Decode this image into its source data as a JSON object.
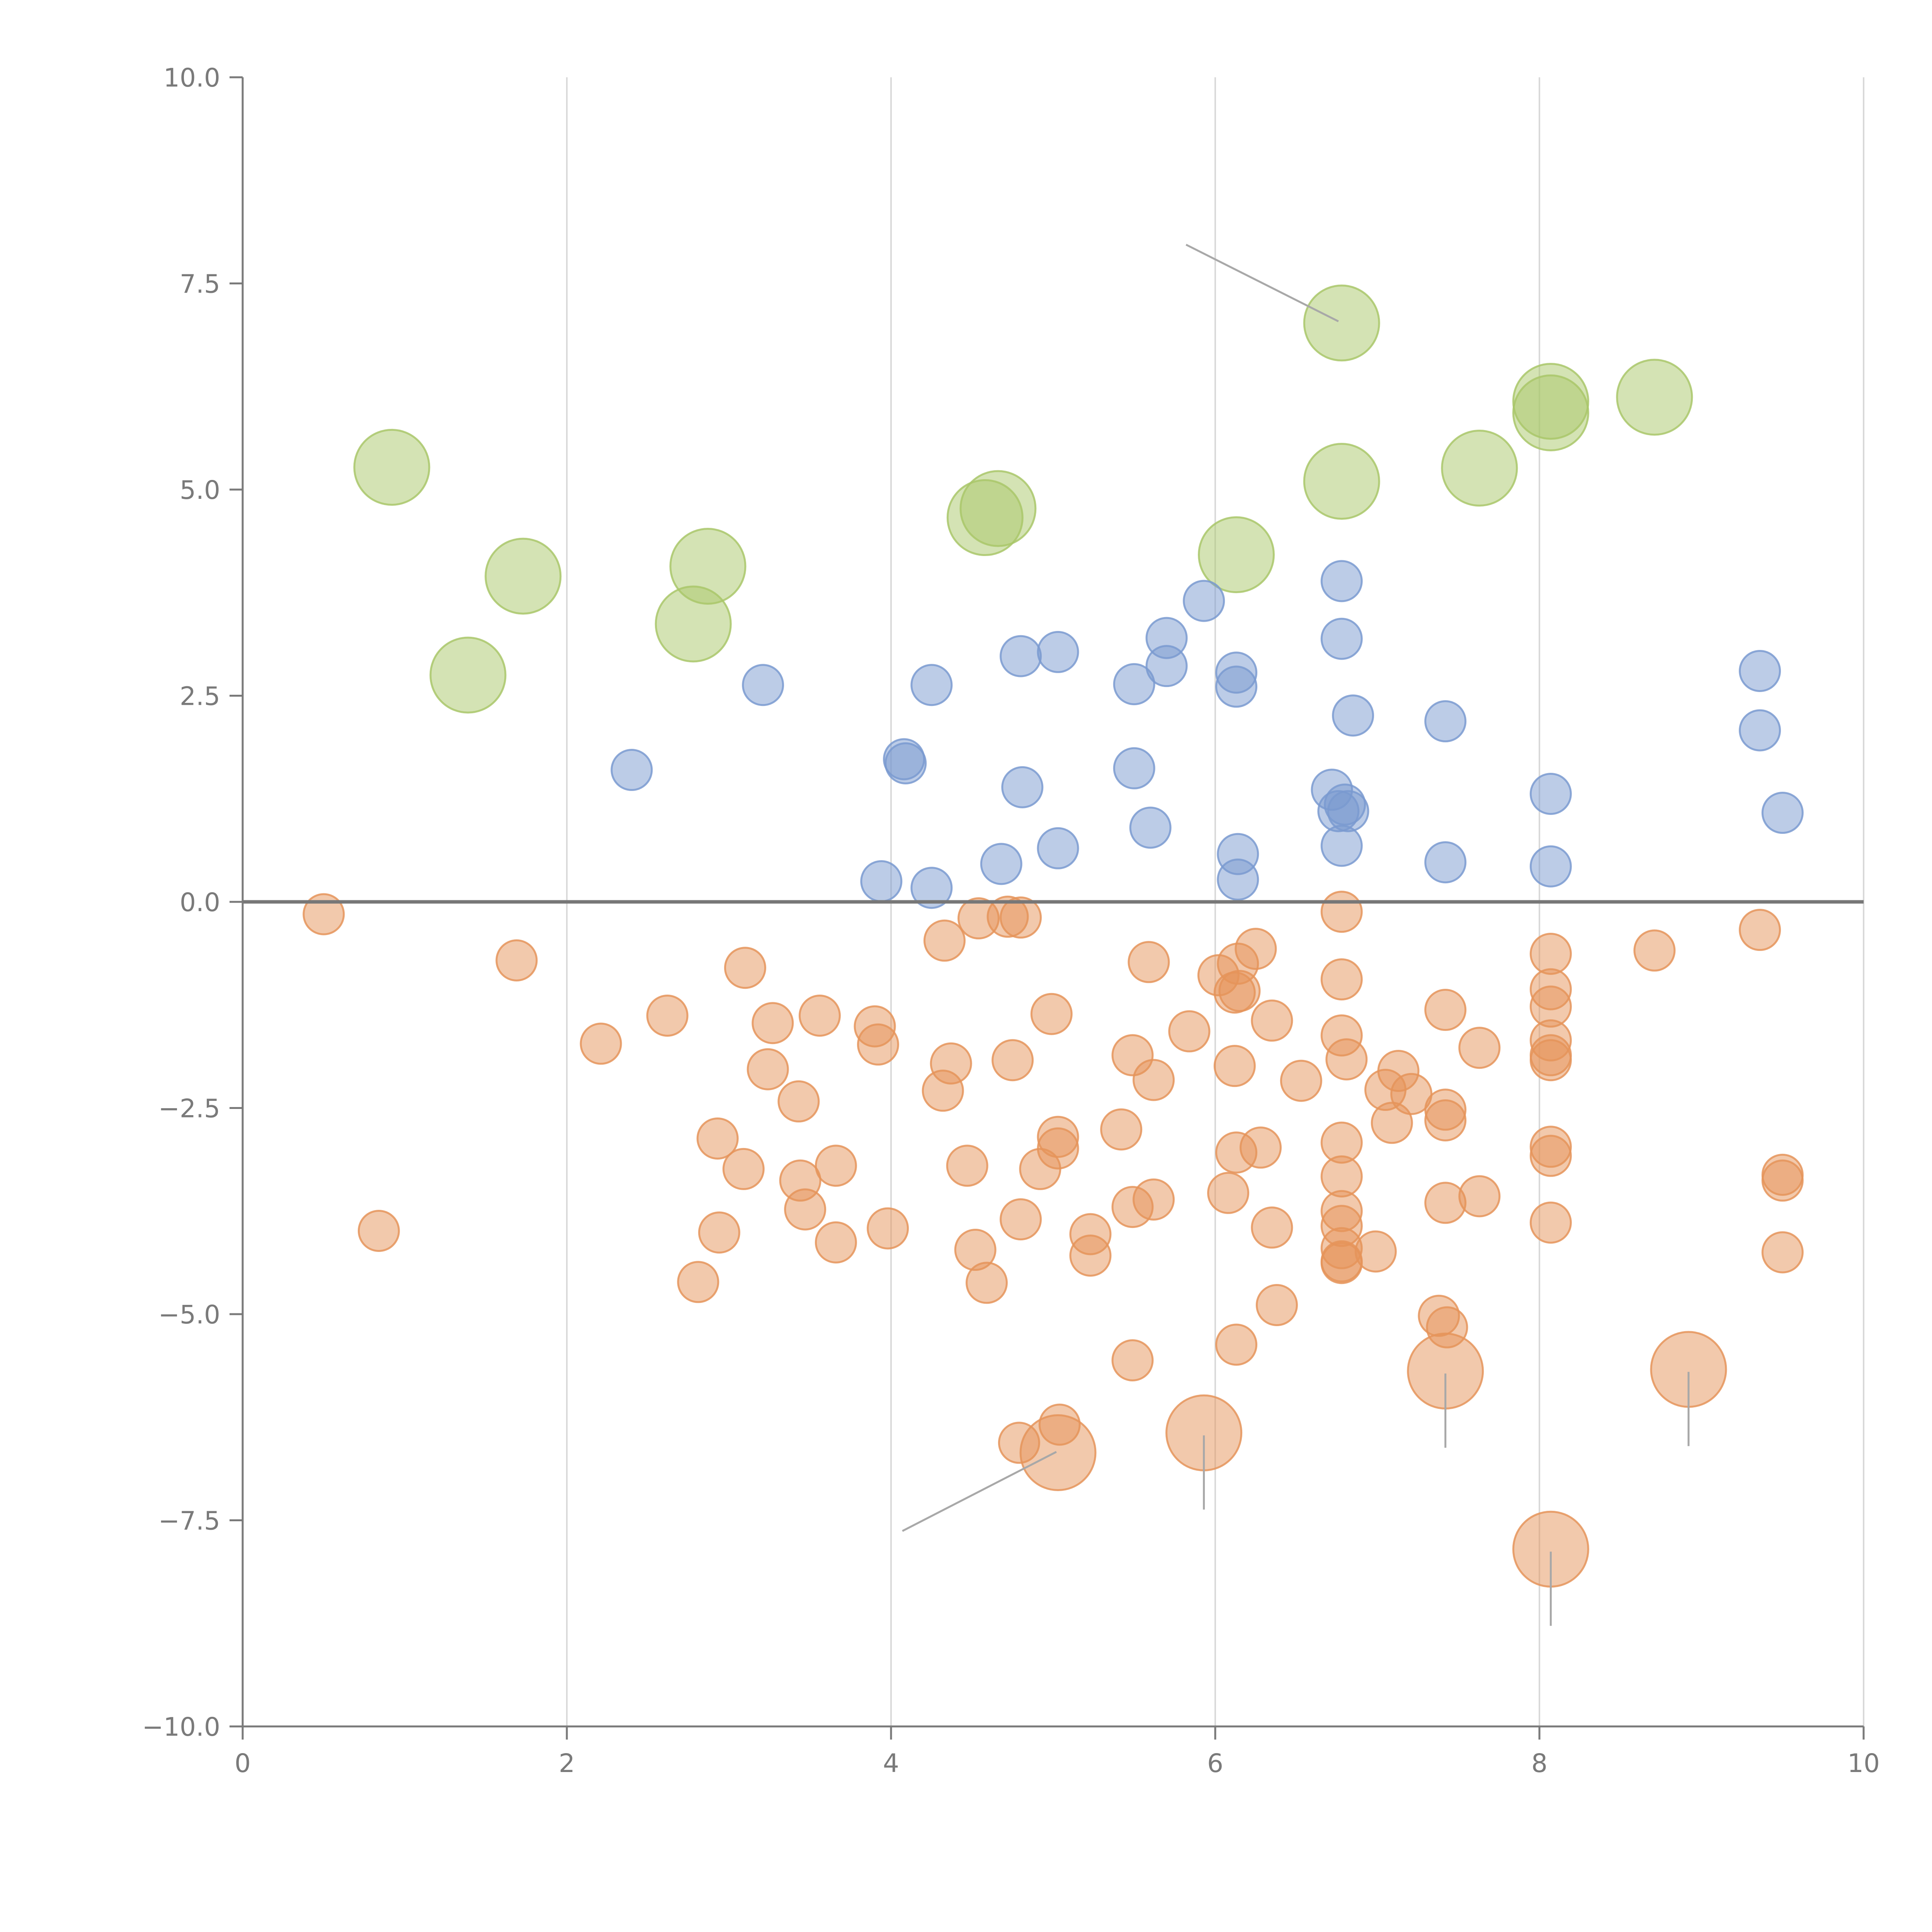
{
  "chart_data": {
    "type": "scatter",
    "title": "",
    "xlabel": "",
    "ylabel": "",
    "xlim": [
      0,
      10
    ],
    "ylim": [
      -10,
      10
    ],
    "grid": "vertical",
    "x_ticks": [
      "0",
      "2",
      "4",
      "6",
      "8",
      "10"
    ],
    "y_ticks": [
      "10.0",
      "7.5",
      "5.0",
      "2.5",
      "0.0",
      "−2.5",
      "−5.0",
      "−7.5",
      "−10.0"
    ],
    "colors": {
      "green": "#a9c76a",
      "blue": "#7a9ad0",
      "orange": "#e5945a",
      "axis": "#7a7a7a",
      "grid": "#d9d9d9",
      "zero_line": "#777777"
    },
    "series": [
      {
        "name": "green",
        "size": "large",
        "points": [
          [
            0.92,
            5.27
          ],
          [
            1.39,
            2.75
          ],
          [
            1.73,
            3.95
          ],
          [
            2.78,
            3.37
          ],
          [
            2.87,
            4.07
          ],
          [
            4.66,
            4.77
          ],
          [
            4.58,
            4.66
          ],
          [
            6.13,
            4.21
          ],
          [
            6.78,
            7.02
          ],
          [
            6.78,
            5.1
          ],
          [
            7.63,
            5.26
          ],
          [
            8.07,
            6.07
          ],
          [
            8.07,
            5.93
          ],
          [
            8.71,
            6.12
          ]
        ]
      },
      {
        "name": "blue",
        "size": "small",
        "points": [
          [
            2.4,
            1.6
          ],
          [
            3.21,
            2.63
          ],
          [
            3.94,
            0.25
          ],
          [
            4.08,
            1.73
          ],
          [
            4.09,
            1.68
          ],
          [
            4.25,
            2.63
          ],
          [
            4.25,
            0.17
          ],
          [
            4.68,
            0.46
          ],
          [
            4.8,
            2.98
          ],
          [
            4.81,
            1.39
          ],
          [
            5.03,
            3.03
          ],
          [
            5.03,
            0.65
          ],
          [
            5.5,
            2.64
          ],
          [
            5.5,
            1.62
          ],
          [
            5.6,
            0.9
          ],
          [
            5.7,
            3.2
          ],
          [
            5.7,
            2.86
          ],
          [
            5.93,
            3.65
          ],
          [
            6.13,
            2.78
          ],
          [
            6.13,
            2.61
          ],
          [
            6.14,
            0.58
          ],
          [
            6.14,
            0.27
          ],
          [
            6.72,
            1.36
          ],
          [
            6.76,
            1.1
          ],
          [
            6.78,
            3.89
          ],
          [
            6.78,
            3.19
          ],
          [
            6.78,
            0.68
          ],
          [
            6.8,
            1.18
          ],
          [
            6.82,
            1.1
          ],
          [
            6.85,
            2.26
          ],
          [
            7.42,
            2.19
          ],
          [
            7.42,
            0.48
          ],
          [
            8.07,
            1.31
          ],
          [
            8.07,
            0.43
          ],
          [
            9.36,
            2.8
          ],
          [
            9.36,
            2.08
          ],
          [
            9.5,
            1.08
          ]
        ]
      },
      {
        "name": "orange",
        "size": "small",
        "points": [
          [
            0.5,
            -0.15
          ],
          [
            0.84,
            -3.99
          ],
          [
            1.69,
            -0.71
          ],
          [
            2.21,
            -1.72
          ],
          [
            2.62,
            -1.38
          ],
          [
            2.81,
            -4.61
          ],
          [
            2.93,
            -2.87
          ],
          [
            2.94,
            -4.01
          ],
          [
            3.09,
            -3.24
          ],
          [
            3.1,
            -0.8
          ],
          [
            3.24,
            -2.03
          ],
          [
            3.27,
            -1.47
          ],
          [
            3.43,
            -2.42
          ],
          [
            3.44,
            -3.38
          ],
          [
            3.47,
            -3.73
          ],
          [
            3.56,
            -1.38
          ],
          [
            3.66,
            -4.13
          ],
          [
            3.66,
            -3.2
          ],
          [
            3.9,
            -1.51
          ],
          [
            3.92,
            -1.73
          ],
          [
            3.98,
            -3.96
          ],
          [
            4.32,
            -2.29
          ],
          [
            4.33,
            -0.47
          ],
          [
            4.37,
            -1.96
          ],
          [
            4.47,
            -3.2
          ],
          [
            4.52,
            -4.22
          ],
          [
            4.54,
            -0.2
          ],
          [
            4.59,
            -4.62
          ],
          [
            4.72,
            -0.18
          ],
          [
            4.75,
            -1.92
          ],
          [
            4.79,
            -6.56
          ],
          [
            4.8,
            -0.19
          ],
          [
            4.8,
            -3.85
          ],
          [
            4.92,
            -3.24
          ],
          [
            4.99,
            -1.36
          ],
          [
            5.03,
            -2.85
          ],
          [
            5.03,
            -2.99
          ],
          [
            5.04,
            -6.34
          ],
          [
            5.23,
            -4.03
          ],
          [
            5.23,
            -4.29
          ],
          [
            5.42,
            -2.76
          ],
          [
            5.49,
            -1.86
          ],
          [
            5.49,
            -3.7
          ],
          [
            5.49,
            -5.56
          ],
          [
            5.59,
            -0.73
          ],
          [
            5.62,
            -2.16
          ],
          [
            5.62,
            -3.61
          ],
          [
            5.84,
            -1.57
          ],
          [
            6.02,
            -0.89
          ],
          [
            6.08,
            -3.53
          ],
          [
            6.12,
            -1.1
          ],
          [
            6.12,
            -1.99
          ],
          [
            6.13,
            -3.04
          ],
          [
            6.13,
            -5.37
          ],
          [
            6.14,
            -0.75
          ],
          [
            6.15,
            -1.08
          ],
          [
            6.25,
            -0.57
          ],
          [
            6.28,
            -2.98
          ],
          [
            6.35,
            -1.44
          ],
          [
            6.35,
            -3.95
          ],
          [
            6.38,
            -4.89
          ],
          [
            6.53,
            -2.17
          ],
          [
            6.78,
            -0.12
          ],
          [
            6.78,
            -0.94
          ],
          [
            6.78,
            -1.62
          ],
          [
            6.78,
            -2.92
          ],
          [
            6.78,
            -3.33
          ],
          [
            6.78,
            -3.75
          ],
          [
            6.78,
            -3.93
          ],
          [
            6.78,
            -4.2
          ],
          [
            6.78,
            -4.36
          ],
          [
            6.78,
            -4.38
          ],
          [
            6.81,
            -1.91
          ],
          [
            6.99,
            -4.24
          ],
          [
            7.05,
            -2.28
          ],
          [
            7.09,
            -2.68
          ],
          [
            7.13,
            -2.05
          ],
          [
            7.21,
            -2.33
          ],
          [
            7.38,
            -5.02
          ],
          [
            7.42,
            -1.31
          ],
          [
            7.42,
            -2.52
          ],
          [
            7.42,
            -2.65
          ],
          [
            7.42,
            -3.65
          ],
          [
            7.43,
            -5.16
          ],
          [
            7.63,
            -1.77
          ],
          [
            7.63,
            -3.57
          ],
          [
            8.07,
            -0.63
          ],
          [
            8.07,
            -1.06
          ],
          [
            8.07,
            -1.27
          ],
          [
            8.07,
            -1.68
          ],
          [
            8.07,
            -1.86
          ],
          [
            8.07,
            -1.92
          ],
          [
            8.07,
            -2.97
          ],
          [
            8.07,
            -3.08
          ],
          [
            8.07,
            -3.89
          ],
          [
            8.71,
            -0.59
          ],
          [
            9.36,
            -0.34
          ],
          [
            9.5,
            -3.31
          ],
          [
            9.5,
            -3.38
          ],
          [
            9.5,
            -4.25
          ]
        ]
      },
      {
        "name": "orange-large",
        "size": "large",
        "points": [
          [
            5.03,
            -6.68
          ],
          [
            5.93,
            -6.44
          ],
          [
            7.42,
            -5.69
          ],
          [
            8.07,
            -7.85
          ],
          [
            8.92,
            -5.67
          ]
        ]
      }
    ],
    "annotations": [
      {
        "x1": 5.82,
        "y1": 7.97,
        "x2": 6.76,
        "y2": 7.04
      },
      {
        "x1": 4.07,
        "y1": -7.63,
        "x2": 5.02,
        "y2": -6.67
      },
      {
        "x1": 5.93,
        "y1": -6.47,
        "x2": 5.93,
        "y2": -7.37
      },
      {
        "x1": 7.42,
        "y1": -5.72,
        "x2": 7.42,
        "y2": -6.62
      },
      {
        "x1": 8.07,
        "y1": -7.88,
        "x2": 8.07,
        "y2": -8.78
      },
      {
        "x1": 8.92,
        "y1": -5.7,
        "x2": 8.92,
        "y2": -6.6
      }
    ]
  }
}
